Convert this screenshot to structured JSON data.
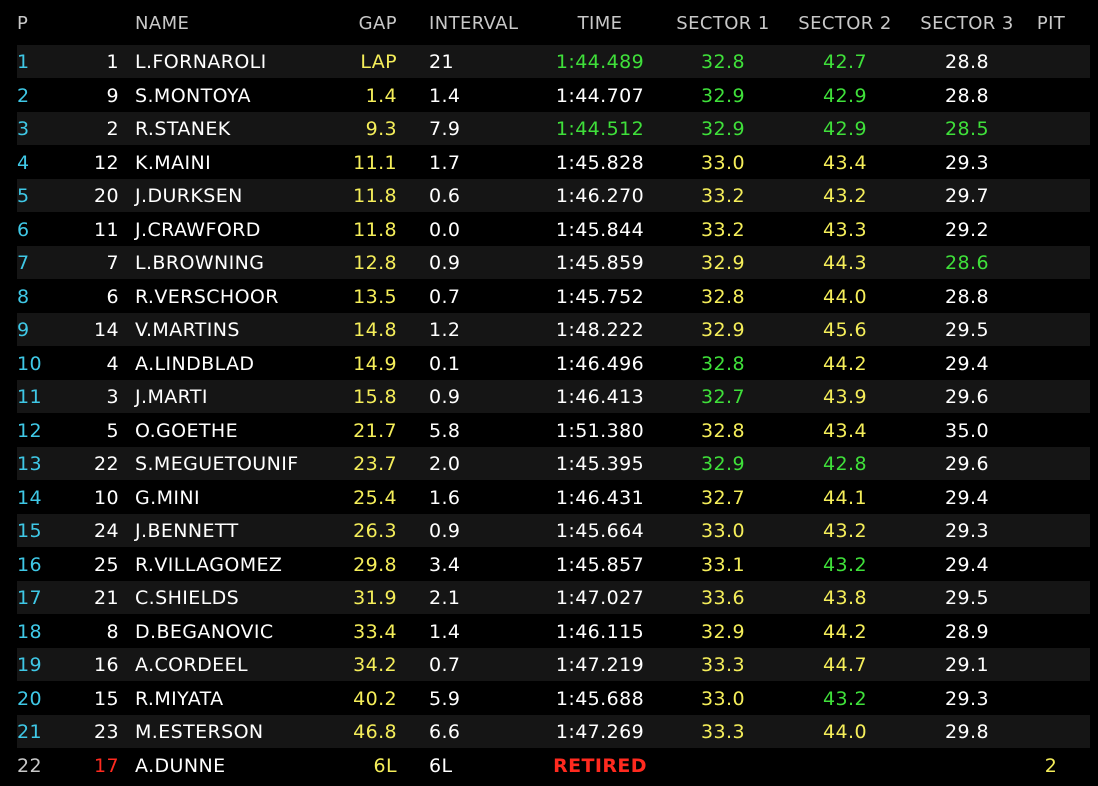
{
  "header": {
    "pos": "P",
    "name": "NAME",
    "gap": "GAP",
    "interval": "INTERVAL",
    "time": "TIME",
    "s1": "SECTOR 1",
    "s2": "SECTOR 2",
    "s3": "SECTOR 3",
    "pit": "PIT"
  },
  "colors": {
    "white": "#ffffff",
    "yellow": "#f5ee5a",
    "green": "#3fe03a",
    "cyan": "#3fc8e6",
    "red": "#ff2a1f"
  },
  "rows": [
    {
      "pos": "1",
      "no": "1",
      "name": "L.FORNAROLI",
      "gap": "LAP",
      "interval": "21",
      "time": "1:44.489",
      "s1": "32.8",
      "s2": "42.7",
      "s3": "28.8",
      "pit": "",
      "tc": "green",
      "s1c": "green",
      "s2c": "green",
      "s3c": "white"
    },
    {
      "pos": "2",
      "no": "9",
      "name": "S.MONTOYA",
      "gap": "1.4",
      "interval": "1.4",
      "time": "1:44.707",
      "s1": "32.9",
      "s2": "42.9",
      "s3": "28.8",
      "pit": "",
      "tc": "white",
      "s1c": "green",
      "s2c": "green",
      "s3c": "white"
    },
    {
      "pos": "3",
      "no": "2",
      "name": "R.STANEK",
      "gap": "9.3",
      "interval": "7.9",
      "time": "1:44.512",
      "s1": "32.9",
      "s2": "42.9",
      "s3": "28.5",
      "pit": "",
      "tc": "green",
      "s1c": "green",
      "s2c": "green",
      "s3c": "green"
    },
    {
      "pos": "4",
      "no": "12",
      "name": "K.MAINI",
      "gap": "11.1",
      "interval": "1.7",
      "time": "1:45.828",
      "s1": "33.0",
      "s2": "43.4",
      "s3": "29.3",
      "pit": "",
      "tc": "white",
      "s1c": "yellow",
      "s2c": "yellow",
      "s3c": "white"
    },
    {
      "pos": "5",
      "no": "20",
      "name": "J.DURKSEN",
      "gap": "11.8",
      "interval": "0.6",
      "time": "1:46.270",
      "s1": "33.2",
      "s2": "43.2",
      "s3": "29.7",
      "pit": "",
      "tc": "white",
      "s1c": "yellow",
      "s2c": "yellow",
      "s3c": "white"
    },
    {
      "pos": "6",
      "no": "11",
      "name": "J.CRAWFORD",
      "gap": "11.8",
      "interval": "0.0",
      "time": "1:45.844",
      "s1": "33.2",
      "s2": "43.3",
      "s3": "29.2",
      "pit": "",
      "tc": "white",
      "s1c": "yellow",
      "s2c": "yellow",
      "s3c": "white"
    },
    {
      "pos": "7",
      "no": "7",
      "name": "L.BROWNING",
      "gap": "12.8",
      "interval": "0.9",
      "time": "1:45.859",
      "s1": "32.9",
      "s2": "44.3",
      "s3": "28.6",
      "pit": "",
      "tc": "white",
      "s1c": "yellow",
      "s2c": "yellow",
      "s3c": "green"
    },
    {
      "pos": "8",
      "no": "6",
      "name": "R.VERSCHOOR",
      "gap": "13.5",
      "interval": "0.7",
      "time": "1:45.752",
      "s1": "32.8",
      "s2": "44.0",
      "s3": "28.8",
      "pit": "",
      "tc": "white",
      "s1c": "yellow",
      "s2c": "yellow",
      "s3c": "white"
    },
    {
      "pos": "9",
      "no": "14",
      "name": "V.MARTINS",
      "gap": "14.8",
      "interval": "1.2",
      "time": "1:48.222",
      "s1": "32.9",
      "s2": "45.6",
      "s3": "29.5",
      "pit": "",
      "tc": "white",
      "s1c": "yellow",
      "s2c": "yellow",
      "s3c": "white"
    },
    {
      "pos": "10",
      "no": "4",
      "name": "A.LINDBLAD",
      "gap": "14.9",
      "interval": "0.1",
      "time": "1:46.496",
      "s1": "32.8",
      "s2": "44.2",
      "s3": "29.4",
      "pit": "",
      "tc": "white",
      "s1c": "green",
      "s2c": "yellow",
      "s3c": "white"
    },
    {
      "pos": "11",
      "no": "3",
      "name": "J.MARTI",
      "gap": "15.8",
      "interval": "0.9",
      "time": "1:46.413",
      "s1": "32.7",
      "s2": "43.9",
      "s3": "29.6",
      "pit": "",
      "tc": "white",
      "s1c": "green",
      "s2c": "yellow",
      "s3c": "white"
    },
    {
      "pos": "12",
      "no": "5",
      "name": "O.GOETHE",
      "gap": "21.7",
      "interval": "5.8",
      "time": "1:51.380",
      "s1": "32.8",
      "s2": "43.4",
      "s3": "35.0",
      "pit": "",
      "tc": "white",
      "s1c": "yellow",
      "s2c": "yellow",
      "s3c": "white"
    },
    {
      "pos": "13",
      "no": "22",
      "name": "S.MEGUETOUNIF",
      "gap": "23.7",
      "interval": "2.0",
      "time": "1:45.395",
      "s1": "32.9",
      "s2": "42.8",
      "s3": "29.6",
      "pit": "",
      "tc": "white",
      "s1c": "green",
      "s2c": "green",
      "s3c": "white"
    },
    {
      "pos": "14",
      "no": "10",
      "name": "G.MINI",
      "gap": "25.4",
      "interval": "1.6",
      "time": "1:46.431",
      "s1": "32.7",
      "s2": "44.1",
      "s3": "29.4",
      "pit": "",
      "tc": "white",
      "s1c": "yellow",
      "s2c": "yellow",
      "s3c": "white"
    },
    {
      "pos": "15",
      "no": "24",
      "name": "J.BENNETT",
      "gap": "26.3",
      "interval": "0.9",
      "time": "1:45.664",
      "s1": "33.0",
      "s2": "43.2",
      "s3": "29.3",
      "pit": "",
      "tc": "white",
      "s1c": "yellow",
      "s2c": "yellow",
      "s3c": "white"
    },
    {
      "pos": "16",
      "no": "25",
      "name": "R.VILLAGOMEZ",
      "gap": "29.8",
      "interval": "3.4",
      "time": "1:45.857",
      "s1": "33.1",
      "s2": "43.2",
      "s3": "29.4",
      "pit": "",
      "tc": "white",
      "s1c": "yellow",
      "s2c": "green",
      "s3c": "white"
    },
    {
      "pos": "17",
      "no": "21",
      "name": "C.SHIELDS",
      "gap": "31.9",
      "interval": "2.1",
      "time": "1:47.027",
      "s1": "33.6",
      "s2": "43.8",
      "s3": "29.5",
      "pit": "",
      "tc": "white",
      "s1c": "yellow",
      "s2c": "yellow",
      "s3c": "white"
    },
    {
      "pos": "18",
      "no": "8",
      "name": "D.BEGANOVIC",
      "gap": "33.4",
      "interval": "1.4",
      "time": "1:46.115",
      "s1": "32.9",
      "s2": "44.2",
      "s3": "28.9",
      "pit": "",
      "tc": "white",
      "s1c": "yellow",
      "s2c": "yellow",
      "s3c": "white"
    },
    {
      "pos": "19",
      "no": "16",
      "name": "A.CORDEEL",
      "gap": "34.2",
      "interval": "0.7",
      "time": "1:47.219",
      "s1": "33.3",
      "s2": "44.7",
      "s3": "29.1",
      "pit": "",
      "tc": "white",
      "s1c": "yellow",
      "s2c": "yellow",
      "s3c": "white"
    },
    {
      "pos": "20",
      "no": "15",
      "name": "R.MIYATA",
      "gap": "40.2",
      "interval": "5.9",
      "time": "1:45.688",
      "s1": "33.0",
      "s2": "43.2",
      "s3": "29.3",
      "pit": "",
      "tc": "white",
      "s1c": "yellow",
      "s2c": "green",
      "s3c": "white"
    },
    {
      "pos": "21",
      "no": "23",
      "name": "M.ESTERSON",
      "gap": "46.8",
      "interval": "6.6",
      "time": "1:47.269",
      "s1": "33.3",
      "s2": "44.0",
      "s3": "29.8",
      "pit": "",
      "tc": "white",
      "s1c": "yellow",
      "s2c": "yellow",
      "s3c": "white"
    },
    {
      "pos": "22",
      "no": "17",
      "name": "A.DUNNE",
      "gap": "6L",
      "interval": "6L",
      "time": "RETIRED",
      "s1": "",
      "s2": "",
      "s3": "",
      "pit": "2",
      "tc": "red",
      "s1c": "white",
      "s2c": "white",
      "s3c": "white",
      "retired": true
    }
  ]
}
